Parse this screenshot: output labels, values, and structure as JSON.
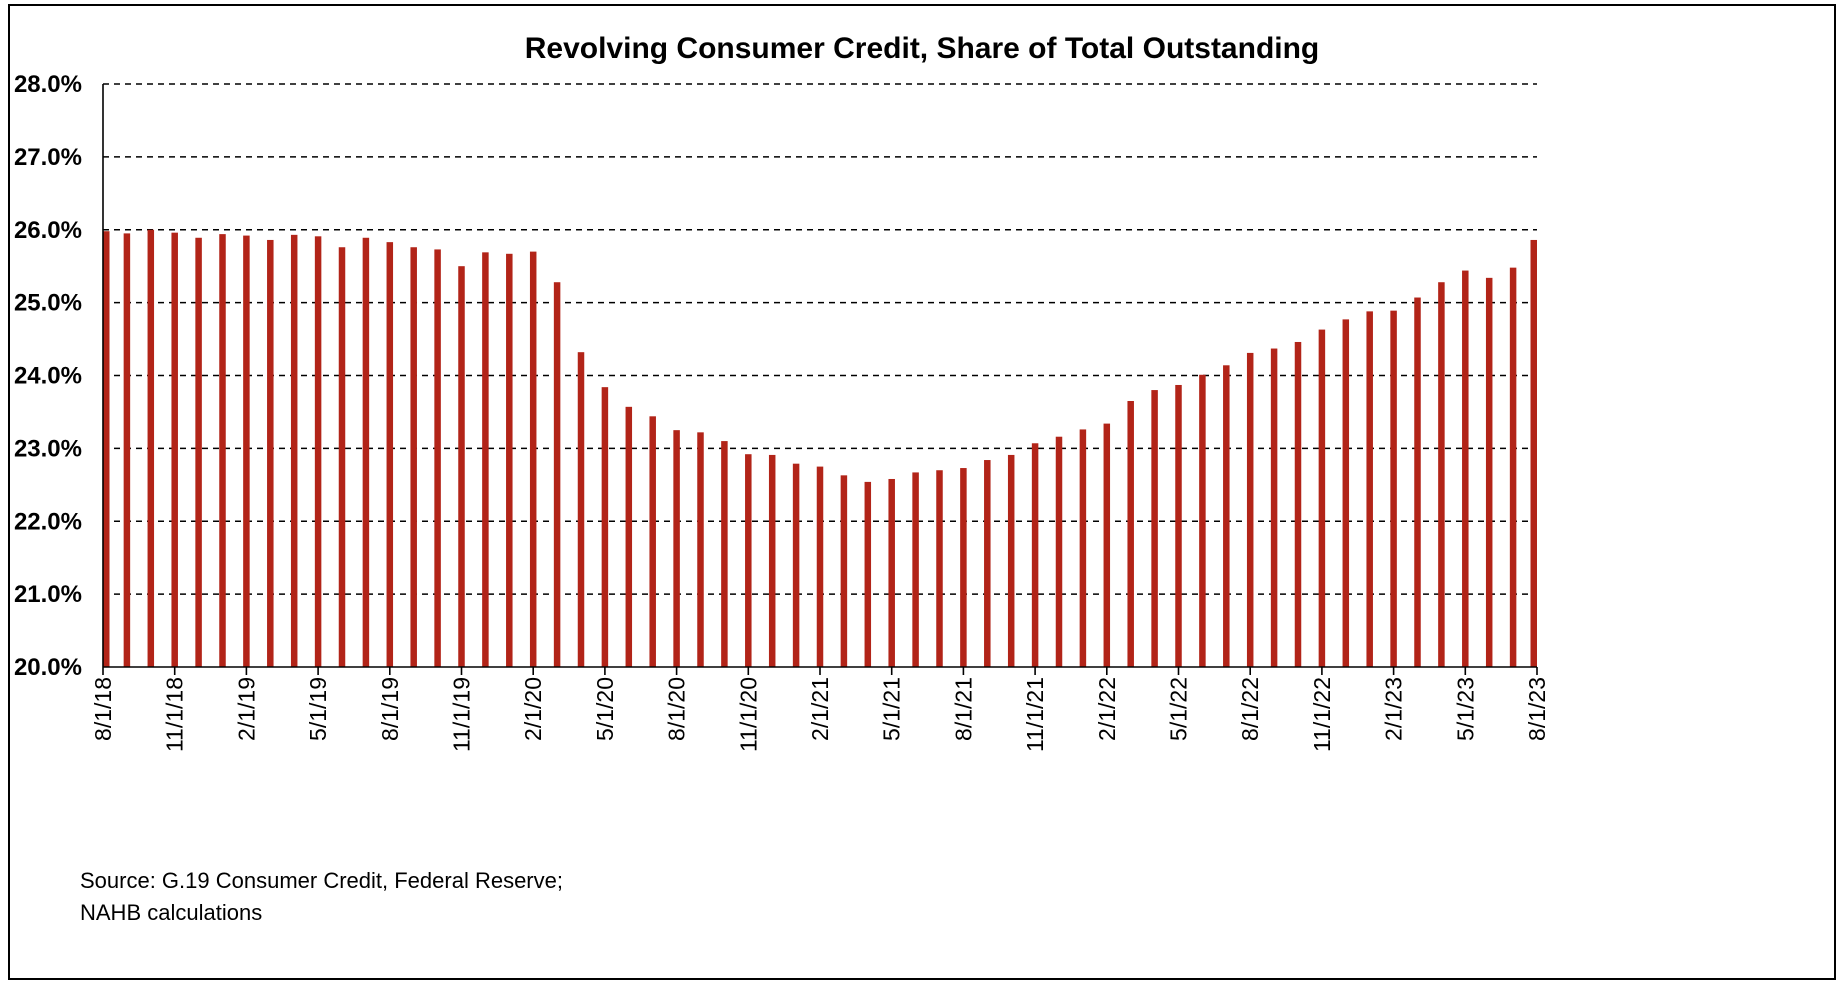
{
  "chart_data": {
    "type": "bar",
    "title": "Revolving Consumer Credit, Share of Total Outstanding",
    "ylim": [
      20.0,
      28.0
    ],
    "y_ticks": [
      "20.0%",
      "21.0%",
      "22.0%",
      "23.0%",
      "24.0%",
      "25.0%",
      "26.0%",
      "27.0%",
      "28.0%"
    ],
    "grid": true,
    "legend": "none",
    "bar_color": "#B22418",
    "categories": [
      "8/1/18",
      "9/1/18",
      "10/1/18",
      "11/1/18",
      "12/1/18",
      "1/1/19",
      "2/1/19",
      "3/1/19",
      "4/1/19",
      "5/1/19",
      "6/1/19",
      "7/1/19",
      "8/1/19",
      "9/1/19",
      "10/1/19",
      "11/1/19",
      "12/1/19",
      "1/1/20",
      "2/1/20",
      "3/1/20",
      "4/1/20",
      "5/1/20",
      "6/1/20",
      "7/1/20",
      "8/1/20",
      "9/1/20",
      "10/1/20",
      "11/1/20",
      "12/1/20",
      "1/1/21",
      "2/1/21",
      "3/1/21",
      "4/1/21",
      "5/1/21",
      "6/1/21",
      "7/1/21",
      "8/1/21",
      "9/1/21",
      "10/1/21",
      "11/1/21",
      "12/1/21",
      "1/1/22",
      "2/1/22",
      "3/1/22",
      "4/1/22",
      "5/1/22",
      "6/1/22",
      "7/1/22",
      "8/1/22",
      "9/1/22",
      "10/1/22",
      "11/1/22",
      "12/1/22",
      "1/1/23",
      "2/1/23",
      "3/1/23",
      "4/1/23",
      "5/1/23",
      "6/1/23",
      "7/1/23",
      "8/1/23"
    ],
    "tick_labels": [
      "8/1/18",
      "11/1/18",
      "2/1/19",
      "5/1/19",
      "8/1/19",
      "11/1/19",
      "2/1/20",
      "5/1/20",
      "8/1/20",
      "11/1/20",
      "2/1/21",
      "5/1/21",
      "8/1/21",
      "11/1/21",
      "2/1/22",
      "5/1/22",
      "8/1/22",
      "11/1/22",
      "2/1/23",
      "5/1/23",
      "8/1/23"
    ],
    "values": [
      25.98,
      25.95,
      26.0,
      25.96,
      25.89,
      25.94,
      25.92,
      25.86,
      25.93,
      25.91,
      25.76,
      25.89,
      25.83,
      25.76,
      25.73,
      25.5,
      25.69,
      25.67,
      25.7,
      25.28,
      24.32,
      23.84,
      23.57,
      23.44,
      23.25,
      23.22,
      23.1,
      22.92,
      22.91,
      22.79,
      22.75,
      22.63,
      22.54,
      22.58,
      22.67,
      22.7,
      22.73,
      22.84,
      22.91,
      23.07,
      23.16,
      23.26,
      23.34,
      23.65,
      23.8,
      23.87,
      24.01,
      24.14,
      24.31,
      24.37,
      24.46,
      24.63,
      24.77,
      24.88,
      24.89,
      25.07,
      25.28,
      25.44,
      25.34,
      25.48,
      25.86
    ],
    "source_lines": [
      "Source: G.19 Consumer Credit, Federal Reserve;",
      "NAHB calculations"
    ]
  }
}
